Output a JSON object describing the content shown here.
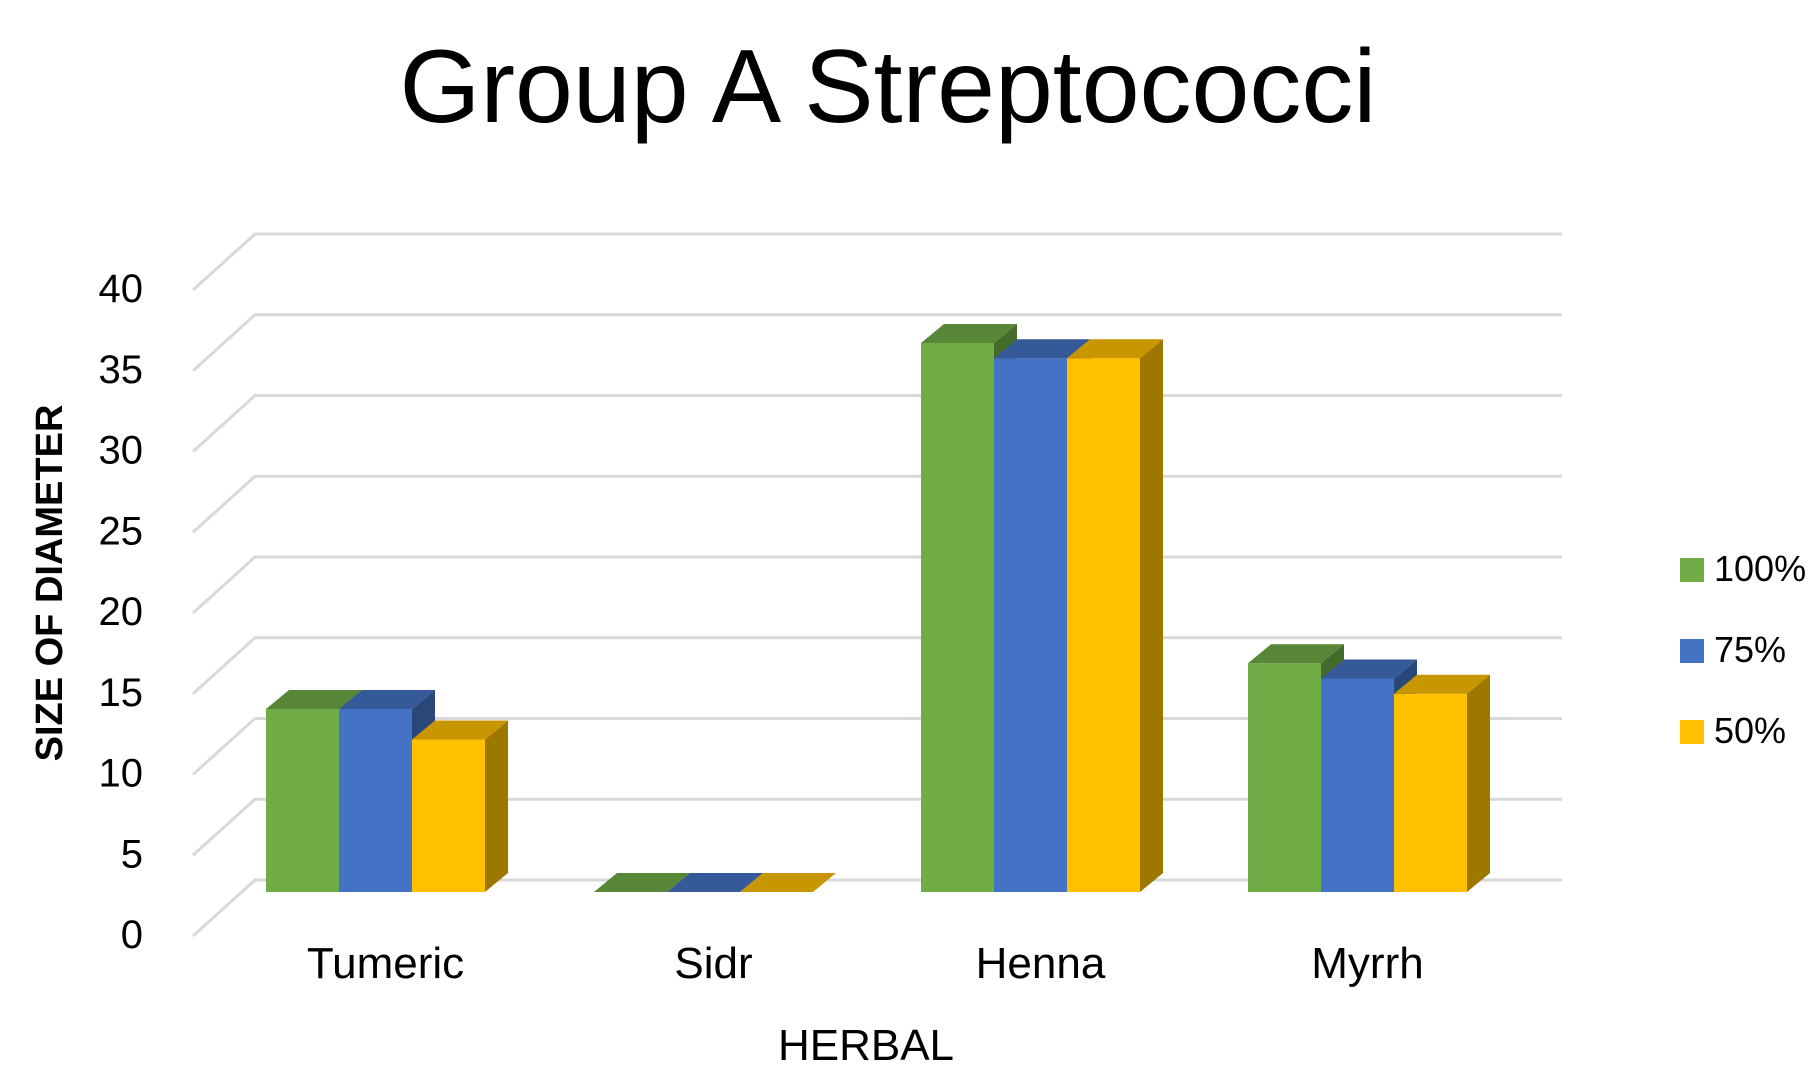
{
  "chart_data": {
    "type": "bar",
    "title": "Group A Streptococci",
    "xlabel": "HERBAL",
    "ylabel": "SIZE OF DIAMETER",
    "categories": [
      "Tumeric",
      "Sidr",
      "Henna",
      "Myrrh"
    ],
    "series": [
      {
        "name": "100%",
        "values": [
          12,
          0,
          36,
          15
        ],
        "color": "#70ad47"
      },
      {
        "name": "75%",
        "values": [
          12,
          0,
          35,
          14
        ],
        "color": "#4472c4"
      },
      {
        "name": "50%",
        "values": [
          10,
          0,
          35,
          13
        ],
        "color": "#ffc000"
      }
    ],
    "ylim": [
      0,
      40
    ],
    "yticks": [
      0,
      5,
      10,
      15,
      20,
      25,
      30,
      35,
      40
    ],
    "yticks_labels": [
      "0",
      "5",
      "10",
      "15",
      "20",
      "25",
      "30",
      "35",
      "40"
    ],
    "grid": true,
    "legend_position": "right",
    "style": "3d-clustered-column"
  }
}
